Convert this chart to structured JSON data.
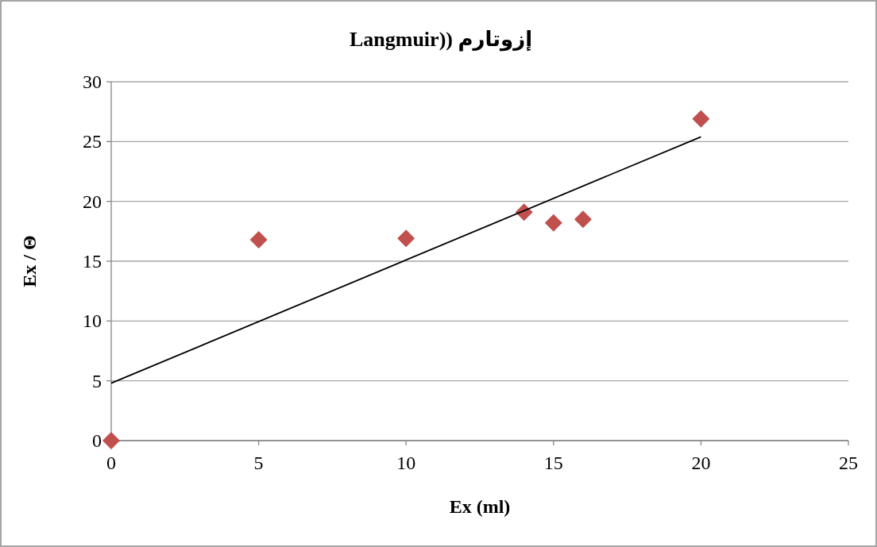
{
  "chart_data": {
    "type": "scatter",
    "title": "إزوتارم ((Langmuir",
    "xlabel": "Ex (ml)",
    "ylabel": "Ex / Θ",
    "xlim": [
      0,
      25
    ],
    "xticks": [
      0,
      5,
      10,
      15,
      20,
      25
    ],
    "ylim": [
      0,
      30
    ],
    "yticks": [
      0,
      5,
      10,
      15,
      20,
      25,
      30
    ],
    "grid": "y",
    "series": [
      {
        "type": "scatter",
        "color": "#c0504d",
        "marker": "diamond",
        "x": [
          0,
          5,
          10,
          14,
          15,
          16,
          20
        ],
        "values": [
          0,
          16.8,
          16.9,
          19.1,
          18.2,
          18.5,
          26.9
        ]
      },
      {
        "type": "line",
        "color": "#000000",
        "marker": "none",
        "line_style": "solid",
        "x": [
          0,
          20
        ],
        "values": [
          4.8,
          25.4
        ]
      }
    ]
  }
}
